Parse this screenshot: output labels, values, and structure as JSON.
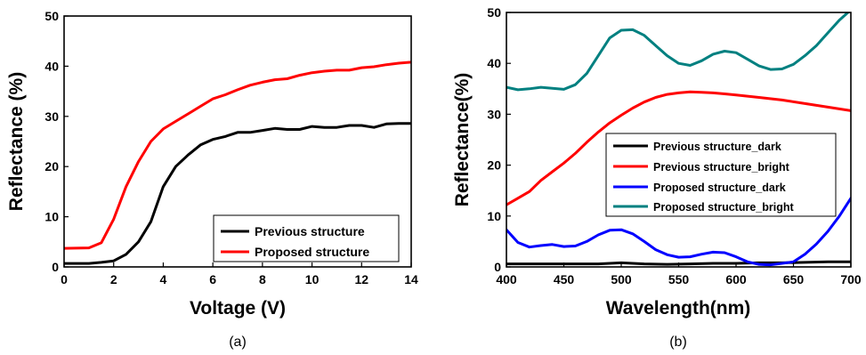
{
  "chart_data": [
    {
      "type": "line",
      "panel_label": "(a)",
      "xlabel": "Voltage (V)",
      "ylabel": "Reflectance (%)",
      "xlim": [
        0,
        14
      ],
      "ylim": [
        0,
        50
      ],
      "xticks": [
        0,
        2,
        4,
        6,
        8,
        10,
        12,
        14
      ],
      "yticks": [
        0,
        10,
        20,
        30,
        40,
        50
      ],
      "legend_position": "bottom-right",
      "series": [
        {
          "name": "Previous structure",
          "color": "#000000",
          "x": [
            0,
            1,
            1.5,
            2,
            2.5,
            3,
            3.5,
            4,
            4.5,
            5,
            5.5,
            6,
            6.5,
            7,
            7.5,
            8,
            8.5,
            9,
            9.5,
            10,
            10.5,
            11,
            11.5,
            12,
            12.5,
            13,
            13.5,
            14
          ],
          "y": [
            0.7,
            0.7,
            0.9,
            1.2,
            2.5,
            5.0,
            9.0,
            16.0,
            20.0,
            22.3,
            24.3,
            25.4,
            26.0,
            26.8,
            26.8,
            27.2,
            27.6,
            27.4,
            27.4,
            28.0,
            27.8,
            27.8,
            28.2,
            28.2,
            27.8,
            28.5,
            28.6,
            28.6
          ]
        },
        {
          "name": "Proposed structure",
          "color": "#ff0000",
          "x": [
            0,
            1,
            1.5,
            2,
            2.5,
            3,
            3.5,
            4,
            4.5,
            5,
            5.5,
            6,
            6.5,
            7,
            7.5,
            8,
            8.5,
            9,
            9.5,
            10,
            10.5,
            11,
            11.5,
            12,
            12.5,
            13,
            13.5,
            14
          ],
          "y": [
            3.7,
            3.8,
            4.8,
            9.5,
            16.0,
            21.0,
            25.0,
            27.5,
            29.0,
            30.5,
            32.0,
            33.5,
            34.3,
            35.3,
            36.2,
            36.8,
            37.3,
            37.5,
            38.2,
            38.7,
            39.0,
            39.2,
            39.2,
            39.7,
            39.9,
            40.3,
            40.6,
            40.8
          ]
        }
      ]
    },
    {
      "type": "line",
      "panel_label": "(b)",
      "xlabel": "Wavelength(nm)",
      "ylabel": "Reflectance(%)",
      "xlim": [
        400,
        700
      ],
      "ylim": [
        0,
        50
      ],
      "xticks": [
        400,
        450,
        500,
        550,
        600,
        650,
        700
      ],
      "yticks": [
        0,
        10,
        20,
        30,
        40,
        50
      ],
      "legend_position": "center-right",
      "series": [
        {
          "name": "Previous structure_dark",
          "color": "#000000",
          "x": [
            400,
            420,
            440,
            460,
            480,
            500,
            520,
            540,
            560,
            580,
            600,
            620,
            640,
            660,
            680,
            700
          ],
          "y": [
            0.6,
            0.6,
            0.6,
            0.6,
            0.6,
            0.8,
            0.6,
            0.5,
            0.6,
            0.7,
            0.7,
            0.8,
            0.8,
            0.9,
            1.0,
            1.0
          ]
        },
        {
          "name": "Previous structure_bright",
          "color": "#ff0000",
          "x": [
            400,
            410,
            420,
            430,
            440,
            450,
            460,
            470,
            480,
            490,
            500,
            510,
            520,
            530,
            540,
            550,
            560,
            570,
            580,
            590,
            600,
            620,
            640,
            660,
            680,
            700
          ],
          "y": [
            12.2,
            13.5,
            14.8,
            17.0,
            18.7,
            20.4,
            22.3,
            24.5,
            26.5,
            28.3,
            29.8,
            31.2,
            32.4,
            33.3,
            33.9,
            34.2,
            34.4,
            34.3,
            34.2,
            34.0,
            33.8,
            33.3,
            32.8,
            32.1,
            31.4,
            30.7
          ]
        },
        {
          "name": "Proposed structure_dark",
          "color": "#0000ff",
          "x": [
            400,
            410,
            420,
            430,
            440,
            450,
            460,
            470,
            480,
            490,
            500,
            510,
            520,
            530,
            540,
            550,
            560,
            570,
            580,
            590,
            600,
            610,
            620,
            630,
            640,
            650,
            660,
            670,
            680,
            690,
            700
          ],
          "y": [
            7.3,
            4.8,
            3.9,
            4.2,
            4.4,
            4.0,
            4.1,
            5.0,
            6.3,
            7.2,
            7.3,
            6.5,
            5.0,
            3.4,
            2.4,
            1.9,
            2.0,
            2.5,
            2.9,
            2.8,
            2.0,
            1.0,
            0.5,
            0.4,
            0.7,
            1.0,
            2.5,
            4.5,
            7.0,
            10.0,
            13.5
          ]
        },
        {
          "name": "Proposed structure_bright",
          "color": "#008080",
          "x": [
            400,
            410,
            420,
            430,
            440,
            450,
            460,
            470,
            480,
            490,
            500,
            510,
            520,
            530,
            540,
            550,
            560,
            570,
            580,
            590,
            600,
            610,
            620,
            630,
            640,
            650,
            660,
            670,
            680,
            690,
            700
          ],
          "y": [
            35.3,
            34.8,
            35.0,
            35.3,
            35.1,
            34.9,
            35.8,
            38.0,
            41.5,
            45.0,
            46.5,
            46.6,
            45.5,
            43.5,
            41.5,
            40.0,
            39.6,
            40.5,
            41.8,
            42.4,
            42.1,
            40.8,
            39.5,
            38.8,
            38.9,
            39.8,
            41.5,
            43.5,
            46.0,
            48.5,
            50.5
          ]
        }
      ]
    }
  ]
}
